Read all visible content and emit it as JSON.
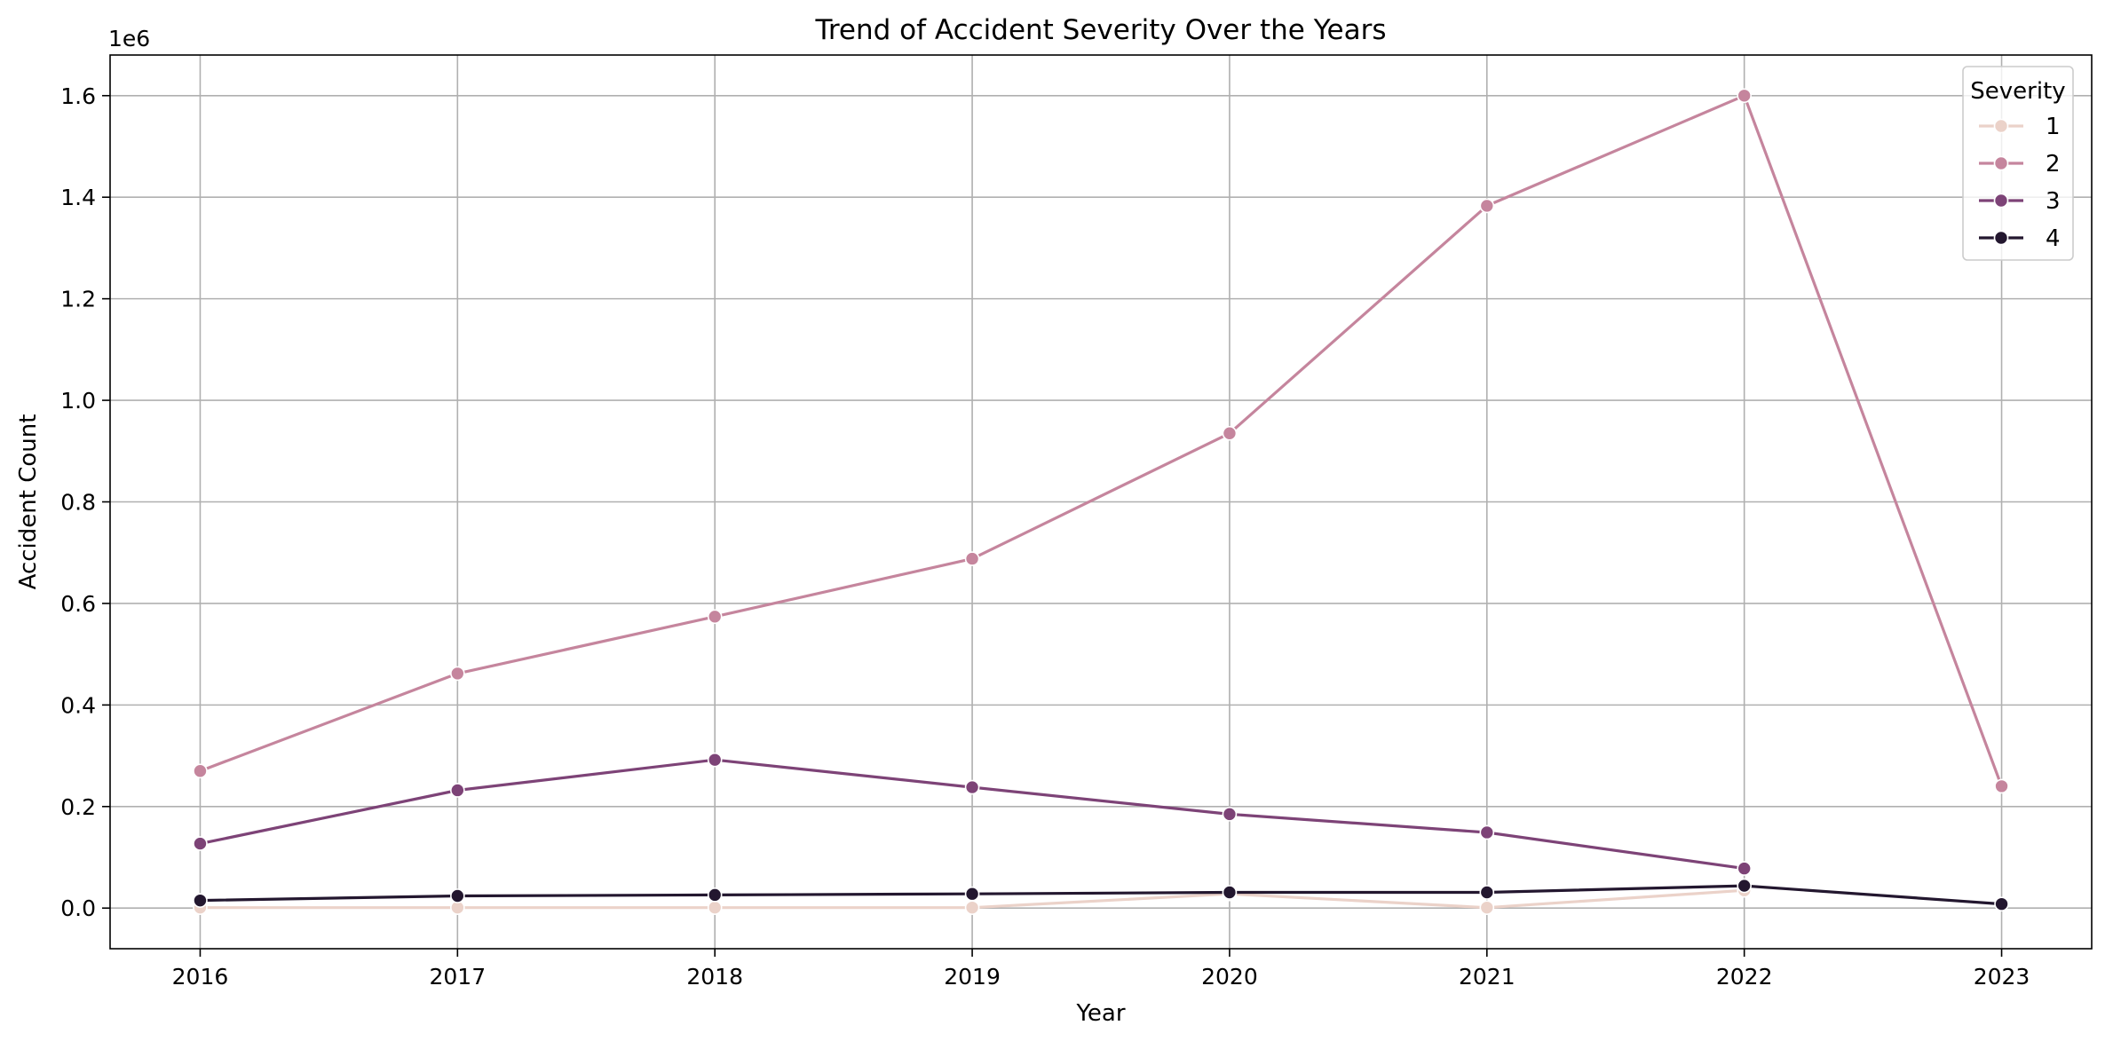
{
  "chart_data": {
    "type": "line",
    "title": "Trend of Accident Severity Over the Years",
    "xlabel": "Year",
    "ylabel": "Accident Count",
    "y_offset_label": "1e6",
    "x": [
      2016,
      2017,
      2018,
      2019,
      2020,
      2021,
      2022,
      2023
    ],
    "x_tick_labels": [
      "2016",
      "2017",
      "2018",
      "2019",
      "2020",
      "2021",
      "2022",
      "2023"
    ],
    "xlim": [
      2015.65,
      2023.35
    ],
    "ylim": [
      -0.08,
      1.68
    ],
    "y_ticks": [
      0.0,
      0.2,
      0.4,
      0.6,
      0.8,
      1.0,
      1.2,
      1.4,
      1.6
    ],
    "y_tick_labels": [
      "0.0",
      "0.2",
      "0.4",
      "0.6",
      "0.8",
      "1.0",
      "1.2",
      "1.4",
      "1.6"
    ],
    "grid": true,
    "legend": {
      "title": "Severity",
      "placement": "top-right"
    },
    "series": [
      {
        "name": "1",
        "color": "#ebd2c9",
        "values": [
          0.001,
          0.001,
          0.001,
          0.001,
          0.028,
          0.001,
          0.035,
          null
        ]
      },
      {
        "name": "2",
        "color": "#c5859d",
        "values": [
          0.27,
          0.462,
          0.574,
          0.688,
          0.935,
          1.383,
          1.6,
          0.24
        ]
      },
      {
        "name": "3",
        "color": "#7d4377",
        "values": [
          0.127,
          0.232,
          0.292,
          0.238,
          0.185,
          0.149,
          0.078,
          null
        ]
      },
      {
        "name": "4",
        "color": "#23172f",
        "values": [
          0.015,
          0.024,
          0.026,
          0.028,
          0.031,
          0.031,
          0.044,
          0.008
        ]
      }
    ]
  }
}
